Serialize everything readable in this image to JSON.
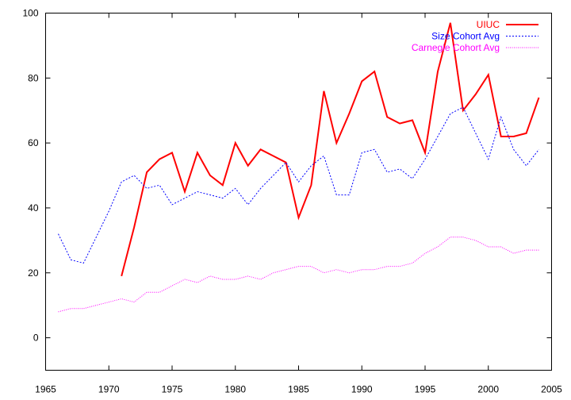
{
  "chart_data": {
    "type": "line",
    "title": "",
    "xlabel": "",
    "ylabel": "",
    "xlim": [
      1965,
      2005
    ],
    "ylim": [
      -10,
      100
    ],
    "xticks": [
      1965,
      1970,
      1975,
      1980,
      1985,
      1990,
      1995,
      2000,
      2005
    ],
    "yticks": [
      0,
      20,
      40,
      60,
      80,
      100
    ],
    "grid": false,
    "legend_position": "top-right",
    "series": [
      {
        "name": "UIUC",
        "color": "#ff0000",
        "style": "solid",
        "x": [
          1971,
          1972,
          1973,
          1974,
          1975,
          1976,
          1977,
          1978,
          1979,
          1980,
          1981,
          1982,
          1983,
          1984,
          1985,
          1986,
          1987,
          1988,
          1989,
          1990,
          1991,
          1992,
          1993,
          1994,
          1995,
          1996,
          1997,
          1998,
          1999,
          2000,
          2001,
          2002,
          2003,
          2004
        ],
        "values": [
          19,
          34,
          51,
          55,
          57,
          45,
          57,
          50,
          47,
          60,
          53,
          58,
          56,
          54,
          37,
          47,
          76,
          60,
          69,
          79,
          82,
          68,
          66,
          67,
          57,
          82,
          97,
          70,
          75,
          81,
          62,
          62,
          63,
          74
        ]
      },
      {
        "name": "Size Cohort Avg",
        "color": "#0000ff",
        "style": "dashed",
        "x": [
          1966,
          1967,
          1968,
          1969,
          1970,
          1971,
          1972,
          1973,
          1974,
          1975,
          1976,
          1977,
          1978,
          1979,
          1980,
          1981,
          1982,
          1983,
          1984,
          1985,
          1986,
          1987,
          1988,
          1989,
          1990,
          1991,
          1992,
          1993,
          1994,
          1995,
          1996,
          1997,
          1998,
          1999,
          2000,
          2001,
          2002,
          2003,
          2004
        ],
        "values": [
          32,
          24,
          23,
          31,
          39,
          48,
          50,
          46,
          47,
          41,
          43,
          45,
          44,
          43,
          46,
          41,
          46,
          50,
          54,
          48,
          53,
          56,
          44,
          44,
          57,
          58,
          51,
          52,
          49,
          55,
          62,
          69,
          71,
          63,
          55,
          68,
          58,
          53,
          58
        ]
      },
      {
        "name": "Carnegie Cohort Avg",
        "color": "#ff00ff",
        "style": "dotted",
        "x": [
          1966,
          1967,
          1968,
          1969,
          1970,
          1971,
          1972,
          1973,
          1974,
          1975,
          1976,
          1977,
          1978,
          1979,
          1980,
          1981,
          1982,
          1983,
          1984,
          1985,
          1986,
          1987,
          1988,
          1989,
          1990,
          1991,
          1992,
          1993,
          1994,
          1995,
          1996,
          1997,
          1998,
          1999,
          2000,
          2001,
          2002,
          2003,
          2004
        ],
        "values": [
          8,
          9,
          9,
          10,
          11,
          12,
          11,
          14,
          14,
          16,
          18,
          17,
          19,
          18,
          18,
          19,
          18,
          20,
          21,
          22,
          22,
          20,
          21,
          20,
          21,
          21,
          22,
          22,
          23,
          26,
          28,
          31,
          31,
          30,
          28,
          28,
          26,
          27,
          27
        ]
      }
    ]
  }
}
